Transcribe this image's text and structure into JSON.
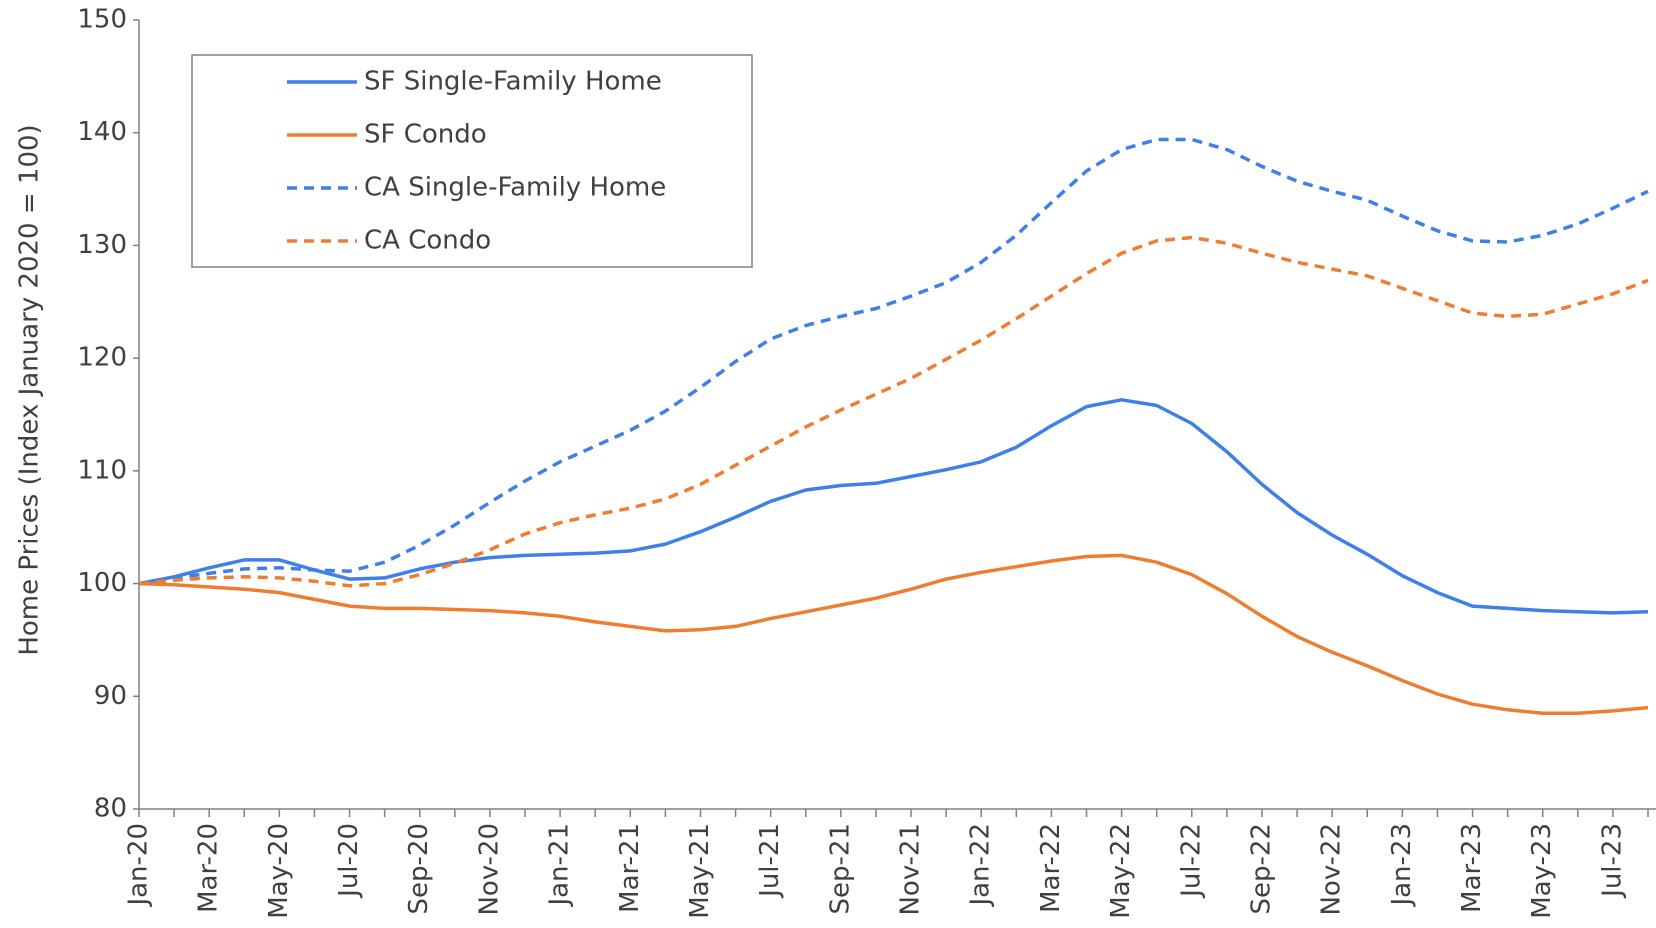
{
  "chart_data": {
    "type": "line",
    "y_label": "Home Prices (Index January 2020 = 100)",
    "categories": [
      "Jan-20",
      null,
      "Mar-20",
      null,
      "May-20",
      null,
      "Jul-20",
      null,
      "Sep-20",
      null,
      "Nov-20",
      null,
      "Jan-21",
      null,
      "Mar-21",
      null,
      "May-21",
      null,
      "Jul-21",
      null,
      "Sep-21",
      null,
      "Nov-21",
      null,
      "Jan-22",
      null,
      "Mar-22",
      null,
      "May-22",
      null,
      "Jul-22",
      null,
      "Sep-22",
      null,
      "Nov-22",
      null,
      "Jan-23",
      null,
      "Mar-23",
      null,
      "May-23",
      null,
      "Jul-23",
      null
    ],
    "series": [
      {
        "name": "SF Single-Family Home",
        "color": "#3f7fe8",
        "style": "solid",
        "values": [
          100,
          100.6,
          101.4,
          102.1,
          102.1,
          101.2,
          100.4,
          100.5,
          101.3,
          101.9,
          102.3,
          102.5,
          102.6,
          102.7,
          102.9,
          103.5,
          104.6,
          105.9,
          107.3,
          108.3,
          108.7,
          108.9,
          109.5,
          110.1,
          110.8,
          112.1,
          114.0,
          115.7,
          116.3,
          115.8,
          114.2,
          111.7,
          108.8,
          106.3,
          104.3,
          102.6,
          100.7,
          99.2,
          98.0,
          97.8,
          97.6,
          97.5,
          97.4,
          97.5
        ]
      },
      {
        "name": "SF Condo",
        "color": "#ed7d31",
        "style": "solid",
        "values": [
          100,
          99.9,
          99.7,
          99.5,
          99.2,
          98.6,
          98.0,
          97.8,
          97.8,
          97.7,
          97.6,
          97.4,
          97.1,
          96.6,
          96.2,
          95.8,
          95.9,
          96.2,
          96.9,
          97.5,
          98.1,
          98.7,
          99.5,
          100.4,
          101.0,
          101.5,
          102.0,
          102.4,
          102.5,
          101.9,
          100.8,
          99.1,
          97.1,
          95.3,
          93.9,
          92.7,
          91.4,
          90.2,
          89.3,
          88.8,
          88.5,
          88.5,
          88.7,
          89.0
        ]
      },
      {
        "name": "CA Single-Family Home",
        "color": "#3f7fe8",
        "style": "dashed",
        "values": [
          100,
          100.5,
          100.9,
          101.3,
          101.4,
          101.2,
          101.1,
          101.9,
          103.4,
          105.2,
          107.2,
          109.1,
          110.8,
          112.2,
          113.6,
          115.3,
          117.4,
          119.7,
          121.7,
          122.9,
          123.7,
          124.4,
          125.5,
          126.7,
          128.5,
          130.9,
          133.8,
          136.6,
          138.5,
          139.4,
          139.4,
          138.5,
          137.0,
          135.7,
          134.8,
          134.0,
          132.6,
          131.3,
          130.4,
          130.3,
          130.9,
          131.9,
          133.3,
          134.8
        ]
      },
      {
        "name": "CA Condo",
        "color": "#ed7d31",
        "style": "dashed",
        "values": [
          100,
          100.3,
          100.5,
          100.6,
          100.5,
          100.2,
          99.8,
          100.0,
          100.8,
          101.8,
          103.0,
          104.4,
          105.4,
          106.1,
          106.7,
          107.5,
          108.8,
          110.5,
          112.2,
          113.9,
          115.4,
          116.8,
          118.2,
          119.9,
          121.6,
          123.5,
          125.5,
          127.5,
          129.3,
          130.4,
          130.7,
          130.2,
          129.3,
          128.5,
          127.9,
          127.3,
          126.2,
          125.1,
          124.0,
          123.7,
          123.9,
          124.8,
          125.7,
          126.9
        ]
      }
    ],
    "ylim": [
      80,
      150
    ],
    "yticks": [
      80,
      90,
      100,
      110,
      120,
      130,
      140,
      150
    ],
    "legend": "upper left",
    "grid": false
  }
}
